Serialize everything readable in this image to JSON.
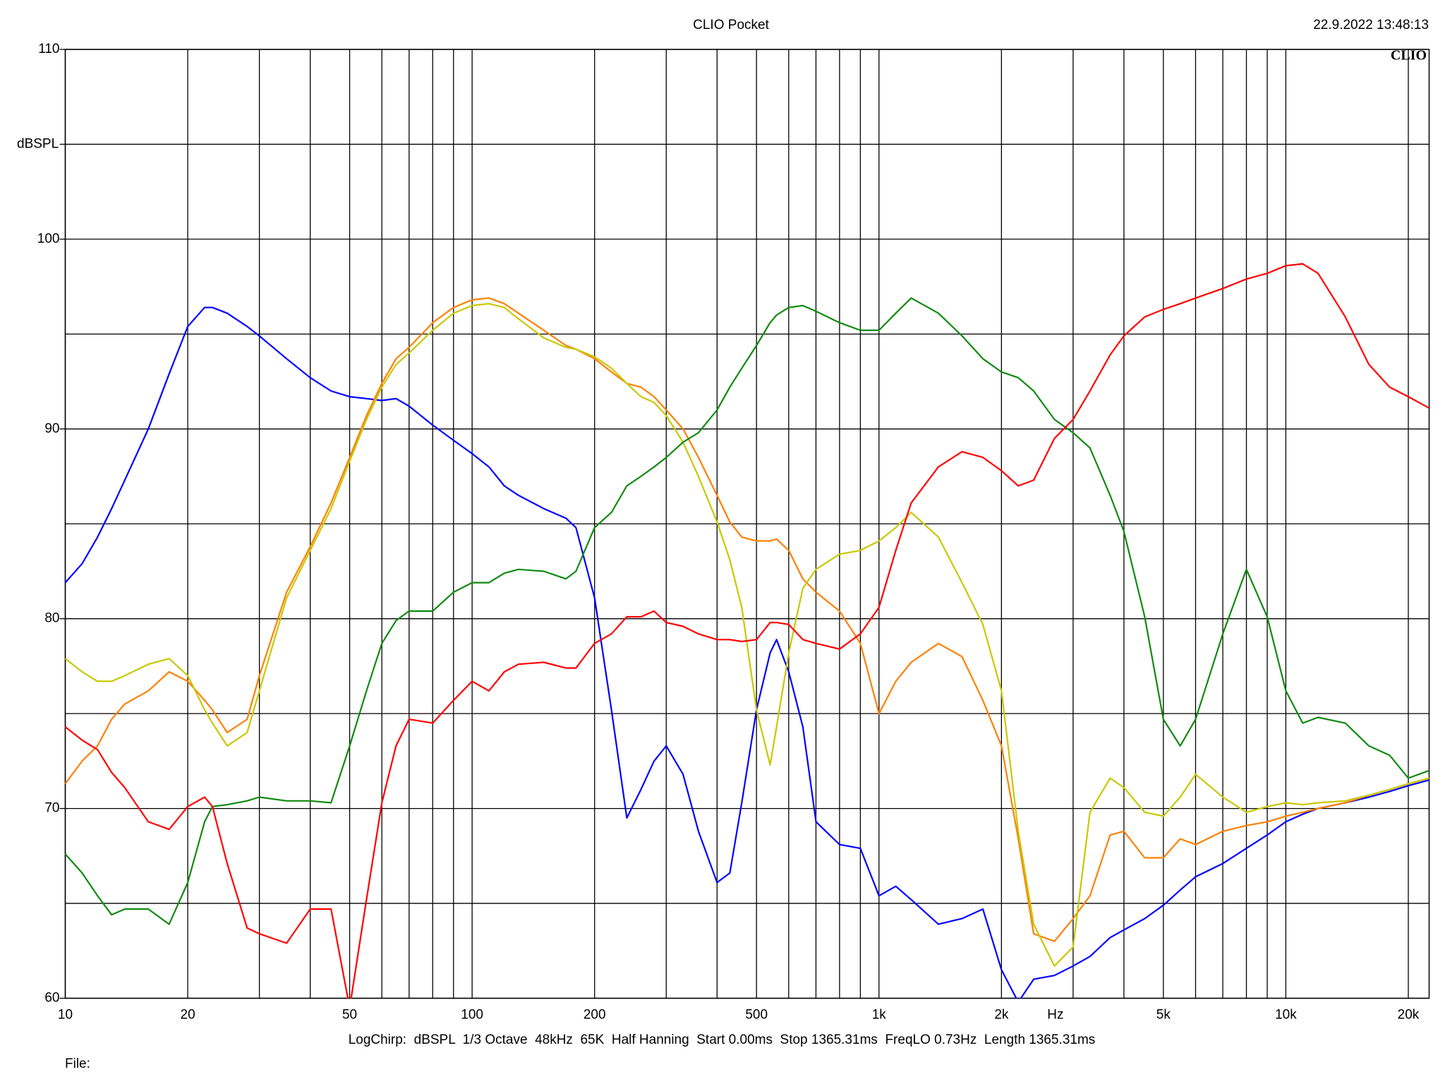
{
  "chart_data": {
    "type": "line",
    "title": "CLIO Pocket",
    "timestamp": "22.9.2022 13:48:13",
    "logo": "CLIO",
    "footer": "LogChirp:  dBSPL  1/3 Octave  48kHz  65K  Half Hanning  Start 0.00ms  Stop 1365.31ms  FreqLO 0.73Hz  Length 1365.31ms",
    "file_label": "File:",
    "xscale": "log",
    "grid": true,
    "xlim": [
      10,
      22500
    ],
    "ylim": [
      60,
      110
    ],
    "xticks": [
      10,
      20,
      50,
      100,
      200,
      500,
      {
        "value": 1000,
        "label": "1k"
      },
      {
        "value": 2000,
        "label": "2k"
      },
      {
        "value": 3000,
        "label": "Hz"
      },
      {
        "value": 5000,
        "label": "5k"
      },
      {
        "value": 10000,
        "label": "10k"
      },
      {
        "value": 20000,
        "label": "20k"
      }
    ],
    "xminor": [
      30,
      40,
      60,
      70,
      80,
      90,
      300,
      400,
      600,
      700,
      800,
      900,
      4000,
      6000,
      7000,
      8000,
      9000
    ],
    "yticks": [
      60,
      70,
      80,
      90,
      100,
      {
        "value": 105,
        "label": "dBSPL"
      },
      110
    ],
    "yminor": [
      65,
      75,
      85,
      95
    ],
    "x": [
      10,
      11,
      12,
      13,
      14,
      16,
      18,
      20,
      22,
      23,
      25,
      28,
      30,
      35,
      40,
      45,
      50,
      55,
      60,
      65,
      70,
      80,
      90,
      100,
      110,
      120,
      130,
      150,
      170,
      180,
      200,
      220,
      240,
      260,
      280,
      300,
      330,
      360,
      400,
      430,
      460,
      500,
      540,
      560,
      600,
      650,
      700,
      800,
      900,
      1000,
      1100,
      1200,
      1400,
      1600,
      1800,
      2000,
      2200,
      2400,
      2700,
      3000,
      3300,
      3700,
      4000,
      4500,
      5000,
      5500,
      6000,
      7000,
      8000,
      9000,
      10000,
      11000,
      12000,
      14000,
      16000,
      18000,
      20000,
      22500
    ],
    "series": [
      {
        "color": "#0000ff",
        "values": [
          81.9,
          82.9,
          84.3,
          85.8,
          87.3,
          90,
          92.9,
          95.4,
          96.4,
          96.4,
          96.1,
          95.4,
          94.9,
          93.7,
          92.7,
          92.0,
          91.7,
          91.6,
          91.5,
          91.6,
          91.2,
          90.2,
          89.4,
          88.7,
          88.0,
          87.0,
          86.5,
          85.8,
          85.3,
          84.8,
          81.1,
          75.2,
          69.5,
          71.0,
          72.5,
          73.3,
          71.8,
          68.8,
          66.1,
          66.6,
          70.3,
          75.2,
          78.2,
          78.9,
          77.2,
          74.3,
          69.3,
          68.1,
          67.9,
          65.4,
          65.9,
          65.2,
          63.9,
          64.2,
          64.7,
          61.5,
          59.8,
          61.0,
          61.2,
          61.7,
          62.2,
          63.2,
          63.6,
          64.2,
          64.9,
          65.7,
          66.4,
          67.1,
          67.9,
          68.6,
          69.3,
          69.7,
          70.0,
          70.3,
          70.6,
          70.9,
          71.2,
          71.5
        ]
      },
      {
        "color": "#ff8000",
        "values": [
          71.3,
          72.5,
          73.3,
          74.7,
          75.5,
          76.2,
          77.2,
          76.7,
          75.7,
          75.2,
          74.0,
          74.7,
          77.0,
          81.4,
          83.8,
          86.1,
          88.5,
          90.7,
          92.4,
          93.7,
          94.3,
          95.6,
          96.4,
          96.8,
          96.9,
          96.6,
          96.1,
          95.2,
          94.4,
          94.2,
          93.7,
          93.0,
          92.4,
          92.2,
          91.7,
          91.0,
          90.0,
          88.5,
          86.5,
          85.1,
          84.3,
          84.1,
          84.1,
          84.2,
          83.6,
          82.1,
          81.4,
          80.4,
          78.7,
          75.0,
          76.7,
          77.7,
          78.7,
          78.0,
          75.7,
          73.3,
          68.4,
          63.4,
          63.0,
          64.2,
          65.4,
          68.6,
          68.8,
          67.4,
          67.4,
          68.4,
          68.1,
          68.8,
          69.1,
          69.3,
          69.6,
          69.8,
          70.0,
          70.3,
          70.7,
          71.0,
          71.3,
          71.6
        ]
      },
      {
        "color": "#c8c800",
        "values": [
          77.9,
          77.2,
          76.7,
          76.7,
          77.0,
          77.6,
          77.9,
          77.0,
          75.2,
          74.5,
          73.3,
          74.0,
          76.2,
          81.1,
          83.6,
          85.8,
          88.3,
          90.5,
          92.2,
          93.4,
          94.0,
          95.2,
          96.1,
          96.5,
          96.6,
          96.4,
          95.8,
          94.8,
          94.3,
          94.2,
          93.8,
          93.2,
          92.4,
          91.7,
          91.4,
          90.7,
          89.3,
          87.5,
          85.1,
          83.1,
          80.6,
          75.2,
          72.3,
          74.3,
          78.2,
          81.6,
          82.6,
          83.4,
          83.6,
          84.1,
          84.8,
          85.6,
          84.3,
          81.9,
          79.7,
          76.2,
          68.8,
          63.9,
          61.7,
          62.7,
          69.8,
          71.6,
          71.1,
          69.8,
          69.6,
          70.6,
          71.8,
          70.6,
          69.8,
          70.1,
          70.3,
          70.2,
          70.3,
          70.4,
          70.7,
          71.0,
          71.3,
          71.6
        ]
      },
      {
        "color": "#108a10",
        "values": [
          67.6,
          66.6,
          65.4,
          64.4,
          64.7,
          64.7,
          63.9,
          66.1,
          69.3,
          70.1,
          70.2,
          70.4,
          70.6,
          70.4,
          70.4,
          70.3,
          73.3,
          76.2,
          78.7,
          79.9,
          80.4,
          80.4,
          81.4,
          81.9,
          81.9,
          82.4,
          82.6,
          82.5,
          82.1,
          82.5,
          84.8,
          85.6,
          87.0,
          87.5,
          88.0,
          88.5,
          89.3,
          89.8,
          91.0,
          92.2,
          93.2,
          94.4,
          95.6,
          96.0,
          96.4,
          96.5,
          96.2,
          95.6,
          95.2,
          95.2,
          96.1,
          96.9,
          96.1,
          94.9,
          93.7,
          93.0,
          92.7,
          92.0,
          90.5,
          89.8,
          89.0,
          86.5,
          84.6,
          80.1,
          74.7,
          73.3,
          74.7,
          79.2,
          82.6,
          80.1,
          76.2,
          74.5,
          74.8,
          74.5,
          73.3,
          72.8,
          71.6,
          72.0
        ]
      },
      {
        "color": "#ff0000",
        "values": [
          74.3,
          73.6,
          73.1,
          71.9,
          71.1,
          69.3,
          68.9,
          70.1,
          70.6,
          70.1,
          67.1,
          63.7,
          63.4,
          62.9,
          64.7,
          64.7,
          59.5,
          65.2,
          70.3,
          73.3,
          74.7,
          74.5,
          75.7,
          76.7,
          76.2,
          77.2,
          77.6,
          77.7,
          77.4,
          77.4,
          78.7,
          79.2,
          80.1,
          80.1,
          80.4,
          79.8,
          79.6,
          79.2,
          78.9,
          78.9,
          78.8,
          78.9,
          79.8,
          79.8,
          79.7,
          78.9,
          78.7,
          78.4,
          79.2,
          80.6,
          83.6,
          86.1,
          88.0,
          88.8,
          88.5,
          87.8,
          87.0,
          87.3,
          89.5,
          90.5,
          92.0,
          93.9,
          94.9,
          95.9,
          96.3,
          96.6,
          96.9,
          97.4,
          97.9,
          98.2,
          98.6,
          98.7,
          98.2,
          95.9,
          93.4,
          92.2,
          91.7,
          91.1
        ]
      }
    ]
  }
}
